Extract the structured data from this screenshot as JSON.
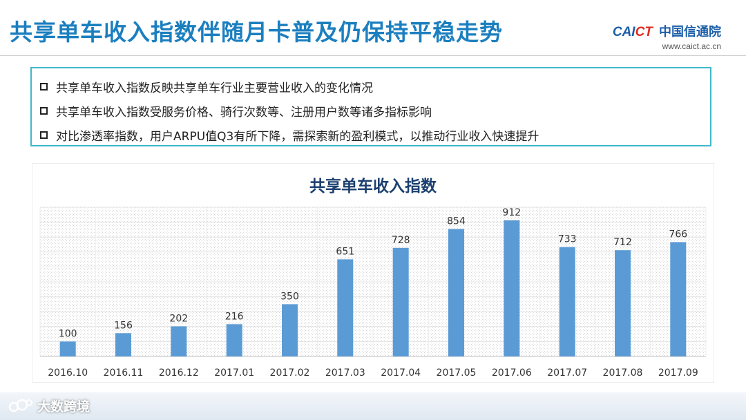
{
  "slide": {
    "title": "共享单车收入指数伴随月卡普及仍保持平稳走势"
  },
  "logo": {
    "mark_left": "CAI",
    "mark_right": "CT",
    "name_cn": "中国信通院",
    "url": "www.caict.ac.cn"
  },
  "bullets": [
    "共享单车收入指数反映共享单车行业主要营业收入的变化情况",
    "共享单车收入指数受服务价格、骑行次数等、注册用户数等诸多指标影响",
    "对比渗透率指数，用户ARPU值Q3有所下降，需探索新的盈利模式，以推动行业收入快速提升"
  ],
  "watermark": {
    "text": "大数跨境"
  },
  "colors": {
    "title": "#1b7fbf",
    "bar": "#5b9bd5",
    "border": "#3fb8c9",
    "chart_title": "#1b3f6f"
  },
  "chart_data": {
    "type": "bar",
    "title": "共享单车收入指数",
    "categories": [
      "2016.10",
      "2016.11",
      "2016.12",
      "2017.01",
      "2017.02",
      "2017.03",
      "2017.04",
      "2017.05",
      "2017.06",
      "2017.07",
      "2017.08",
      "2017.09"
    ],
    "values": [
      100,
      156,
      202,
      216,
      350,
      651,
      728,
      854,
      912,
      733,
      712,
      766
    ],
    "ylim": [
      0,
      1000
    ],
    "grid": true,
    "data_labels": true,
    "legend": "none"
  }
}
